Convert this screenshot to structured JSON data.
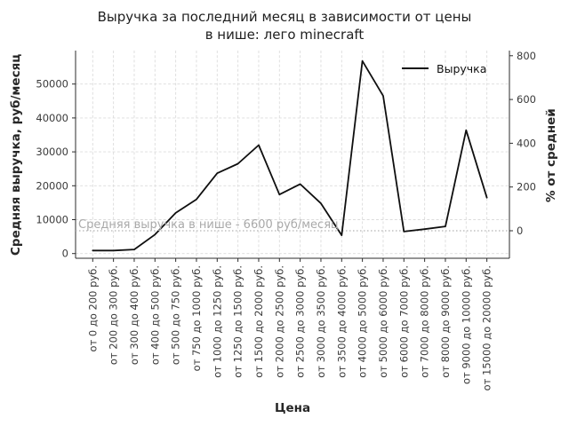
{
  "chart_data": {
    "type": "line",
    "title_line1": "Выручка за последний месяц в зависимости от цены",
    "title_line2": "в нише: лего minecraft",
    "xlabel": "Цена",
    "ylabel_left": "Средняя выручка, руб/месяц",
    "ylabel_right": "% от средней",
    "legend": [
      {
        "name": "Выручка",
        "color": "#0f0f0f"
      }
    ],
    "legend_position": "upper right",
    "grid": true,
    "categories": [
      "от 0 до 200 руб.",
      "от 200 до 300 руб.",
      "от 300 до 400 руб.",
      "от 400 до 500 руб.",
      "от 500 до 750 руб.",
      "от 750 до 1000 руб.",
      "от 1000 до 1250 руб.",
      "от 1250 до 1500 руб.",
      "от 1500 до 2000 руб.",
      "от 2000 до 2500 руб.",
      "от 2500 до 3000 руб.",
      "от 3000 до 3500 руб.",
      "от 3500 до 4000 руб.",
      "от 4000 до 5000 руб.",
      "от 5000 до 6000 руб.",
      "от 6000 до 7000 руб.",
      "от 7000 до 8000 руб.",
      "от 8000 до 9000 руб.",
      "от 9000 до 10000 руб.",
      "от 15000 до 20000 руб."
    ],
    "series": [
      {
        "name": "Выручка",
        "values": [
          900,
          900,
          1200,
          5600,
          12000,
          16000,
          23700,
          26500,
          32000,
          17400,
          20500,
          14800,
          5400,
          56800,
          46500,
          6500,
          7200,
          8000,
          36400,
          16500
        ]
      }
    ],
    "average_line": {
      "value": 6600,
      "label": "Средняя выручка в нише - 6600 руб/месяц"
    },
    "y_left_ticks": [
      0,
      10000,
      20000,
      30000,
      40000,
      50000
    ],
    "y_right_ticks": [
      0,
      200,
      400,
      600,
      800
    ],
    "ylim_left": [
      -1500,
      60000
    ],
    "colors": {
      "line": "#0f0f0f",
      "grid": "#dcdcdc",
      "average_line": "#b3b3b3",
      "annotation_text": "#a9a9a9",
      "tick_text": "#3a3a3a",
      "spine": "#2b2b2b"
    }
  }
}
